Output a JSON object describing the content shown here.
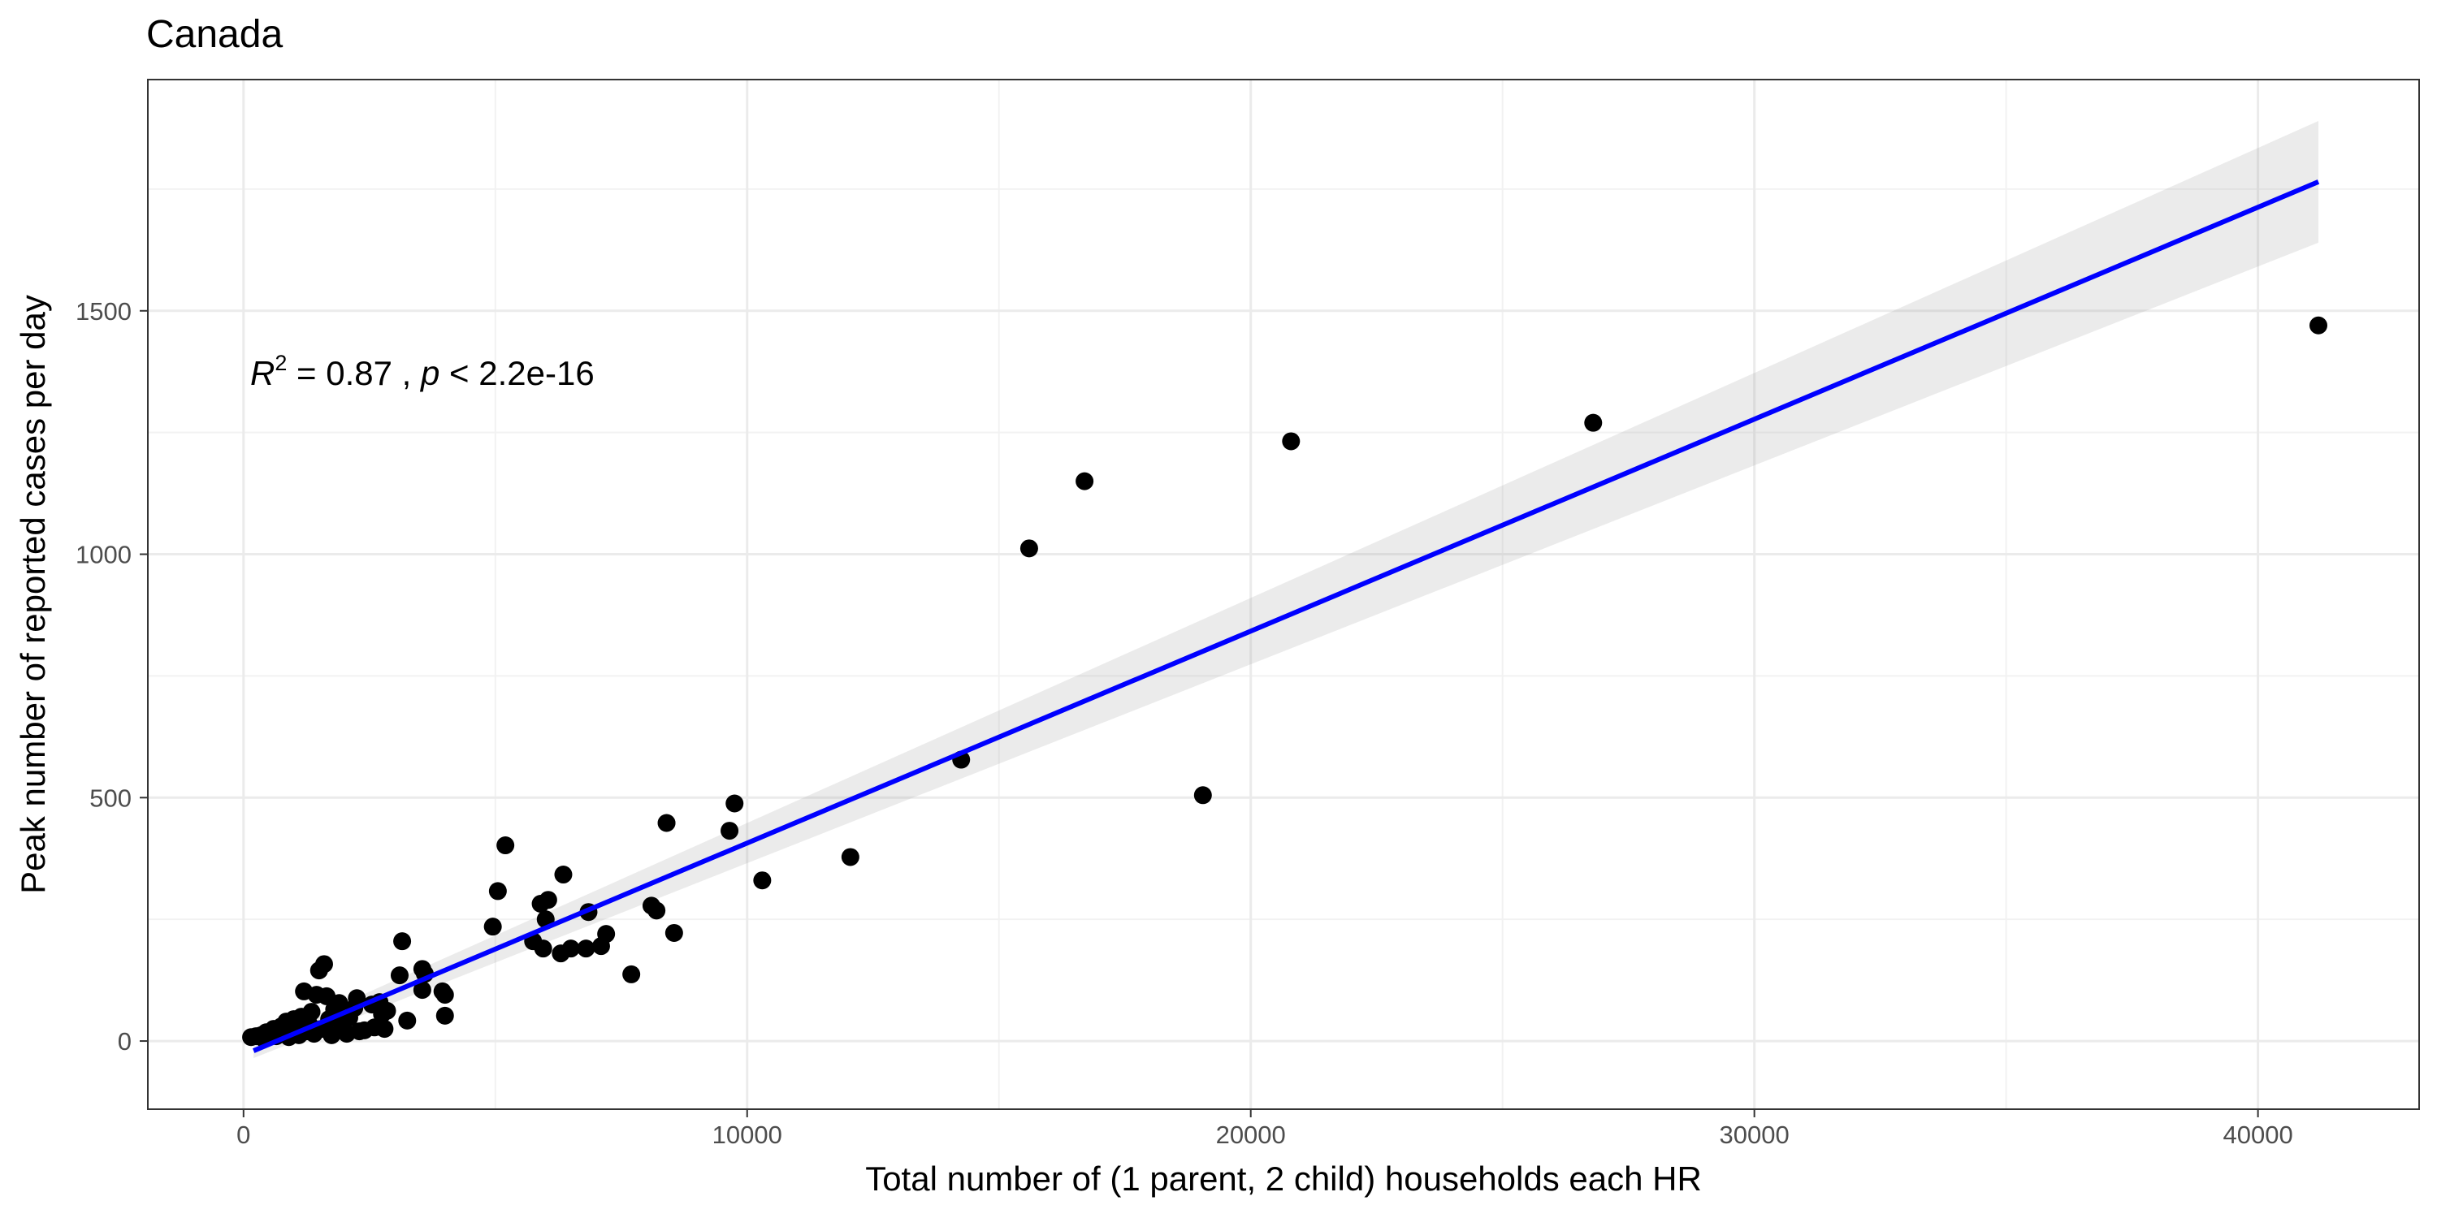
{
  "chart_data": {
    "type": "scatter",
    "title": "Canada",
    "xlabel": "Total number of (1 parent, 2 child) households each HR",
    "ylabel": "Peak number of reported cases per day",
    "xlim": [
      -1900,
      43200
    ],
    "ylim": [
      -140,
      1975
    ],
    "x_ticks": [
      0,
      10000,
      20000,
      30000,
      40000
    ],
    "x_tick_labels": [
      "0",
      "10000",
      "20000",
      "30000",
      "40000"
    ],
    "y_ticks": [
      0,
      500,
      1000,
      1500
    ],
    "y_tick_labels": [
      "0",
      "500",
      "1000",
      "1500"
    ],
    "x_minor": [
      5000,
      15000,
      25000,
      35000
    ],
    "y_minor": [
      250,
      750,
      1250,
      1750
    ],
    "grid": true,
    "annotation": {
      "r2_symbol": "R",
      "r2_exp": "2",
      "r2_text": " = 0.87 , ",
      "p_symbol": "p",
      "p_text": " < 2.2e-16"
    },
    "regression": {
      "x_start": 200,
      "x_end": 41200,
      "y_start": -20,
      "y_end": 1765,
      "ci_start": [
        -35,
        -5
      ],
      "ci_end": [
        1640,
        1890
      ],
      "color": "#0000ff"
    },
    "series": [
      {
        "values": [
          [
            41200,
            1470
          ],
          [
            26800,
            1270
          ],
          [
            20800,
            1232
          ],
          [
            16700,
            1150
          ],
          [
            15600,
            1012
          ],
          [
            19050,
            505
          ],
          [
            14250,
            578
          ],
          [
            12050,
            378
          ],
          [
            10300,
            330
          ],
          [
            9750,
            488
          ],
          [
            9650,
            432
          ],
          [
            8400,
            448
          ],
          [
            8550,
            222
          ],
          [
            8200,
            268
          ],
          [
            8100,
            278
          ],
          [
            7700,
            137
          ],
          [
            7200,
            220
          ],
          [
            7100,
            195
          ],
          [
            6850,
            265
          ],
          [
            6800,
            190
          ],
          [
            6500,
            190
          ],
          [
            6350,
            342
          ],
          [
            6300,
            180
          ],
          [
            6050,
            290
          ],
          [
            6000,
            250
          ],
          [
            5950,
            190
          ],
          [
            5900,
            282
          ],
          [
            5750,
            205
          ],
          [
            5200,
            402
          ],
          [
            5050,
            308
          ],
          [
            4950,
            235
          ],
          [
            4000,
            52
          ],
          [
            4000,
            95
          ],
          [
            3950,
            102
          ],
          [
            3600,
            138
          ],
          [
            3550,
            148
          ],
          [
            3550,
            105
          ],
          [
            3250,
            42
          ],
          [
            3150,
            205
          ],
          [
            3100,
            135
          ],
          [
            2850,
            62
          ],
          [
            2800,
            25
          ],
          [
            2750,
            55
          ],
          [
            2700,
            80
          ],
          [
            2600,
            28
          ],
          [
            2550,
            75
          ],
          [
            2400,
            22
          ],
          [
            2300,
            20
          ],
          [
            2250,
            88
          ],
          [
            2200,
            68
          ],
          [
            2100,
            48
          ],
          [
            2050,
            15
          ],
          [
            1950,
            38
          ],
          [
            1900,
            78
          ],
          [
            1800,
            65
          ],
          [
            1750,
            12
          ],
          [
            1700,
            45
          ],
          [
            1650,
            92
          ],
          [
            1600,
            158
          ],
          [
            1550,
            25
          ],
          [
            1500,
            145
          ],
          [
            1450,
            95
          ],
          [
            1400,
            15
          ],
          [
            1350,
            60
          ],
          [
            1300,
            35
          ],
          [
            1250,
            20
          ],
          [
            1200,
            102
          ],
          [
            1150,
            50
          ],
          [
            1100,
            12
          ],
          [
            1050,
            30
          ],
          [
            1000,
            45
          ],
          [
            950,
            25
          ],
          [
            900,
            8
          ],
          [
            850,
            40
          ],
          [
            800,
            15
          ],
          [
            750,
            30
          ],
          [
            700,
            20
          ],
          [
            650,
            10
          ],
          [
            600,
            25
          ],
          [
            550,
            15
          ],
          [
            500,
            8
          ],
          [
            450,
            18
          ],
          [
            400,
            5
          ],
          [
            350,
            12
          ],
          [
            250,
            10
          ],
          [
            150,
            8
          ]
        ]
      }
    ]
  }
}
